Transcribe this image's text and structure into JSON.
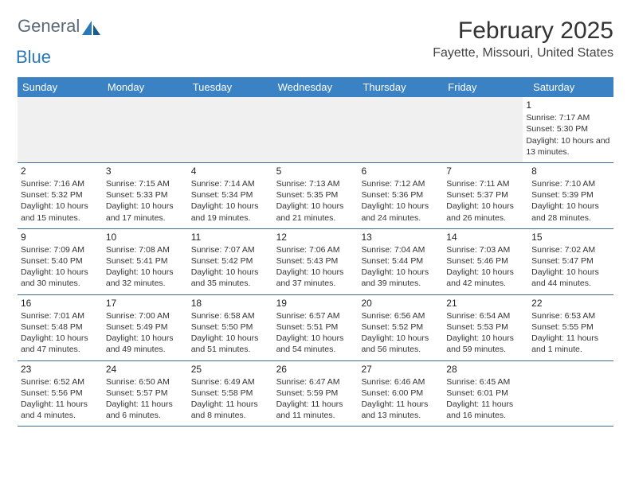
{
  "brand": {
    "name1": "General",
    "name2": "Blue"
  },
  "title": "February 2025",
  "location": "Fayette, Missouri, United States",
  "colors": {
    "header_bg": "#3a82c4",
    "header_text": "#ffffff",
    "rule": "#3a6a9a",
    "logo_gray": "#5a6a78",
    "logo_blue": "#2978b8",
    "text": "#333333",
    "blank_bg": "#f0f0f0"
  },
  "day_names": [
    "Sunday",
    "Monday",
    "Tuesday",
    "Wednesday",
    "Thursday",
    "Friday",
    "Saturday"
  ],
  "days": {
    "1": {
      "sunrise": "7:17 AM",
      "sunset": "5:30 PM",
      "daylight": "10 hours and 13 minutes."
    },
    "2": {
      "sunrise": "7:16 AM",
      "sunset": "5:32 PM",
      "daylight": "10 hours and 15 minutes."
    },
    "3": {
      "sunrise": "7:15 AM",
      "sunset": "5:33 PM",
      "daylight": "10 hours and 17 minutes."
    },
    "4": {
      "sunrise": "7:14 AM",
      "sunset": "5:34 PM",
      "daylight": "10 hours and 19 minutes."
    },
    "5": {
      "sunrise": "7:13 AM",
      "sunset": "5:35 PM",
      "daylight": "10 hours and 21 minutes."
    },
    "6": {
      "sunrise": "7:12 AM",
      "sunset": "5:36 PM",
      "daylight": "10 hours and 24 minutes."
    },
    "7": {
      "sunrise": "7:11 AM",
      "sunset": "5:37 PM",
      "daylight": "10 hours and 26 minutes."
    },
    "8": {
      "sunrise": "7:10 AM",
      "sunset": "5:39 PM",
      "daylight": "10 hours and 28 minutes."
    },
    "9": {
      "sunrise": "7:09 AM",
      "sunset": "5:40 PM",
      "daylight": "10 hours and 30 minutes."
    },
    "10": {
      "sunrise": "7:08 AM",
      "sunset": "5:41 PM",
      "daylight": "10 hours and 32 minutes."
    },
    "11": {
      "sunrise": "7:07 AM",
      "sunset": "5:42 PM",
      "daylight": "10 hours and 35 minutes."
    },
    "12": {
      "sunrise": "7:06 AM",
      "sunset": "5:43 PM",
      "daylight": "10 hours and 37 minutes."
    },
    "13": {
      "sunrise": "7:04 AM",
      "sunset": "5:44 PM",
      "daylight": "10 hours and 39 minutes."
    },
    "14": {
      "sunrise": "7:03 AM",
      "sunset": "5:46 PM",
      "daylight": "10 hours and 42 minutes."
    },
    "15": {
      "sunrise": "7:02 AM",
      "sunset": "5:47 PM",
      "daylight": "10 hours and 44 minutes."
    },
    "16": {
      "sunrise": "7:01 AM",
      "sunset": "5:48 PM",
      "daylight": "10 hours and 47 minutes."
    },
    "17": {
      "sunrise": "7:00 AM",
      "sunset": "5:49 PM",
      "daylight": "10 hours and 49 minutes."
    },
    "18": {
      "sunrise": "6:58 AM",
      "sunset": "5:50 PM",
      "daylight": "10 hours and 51 minutes."
    },
    "19": {
      "sunrise": "6:57 AM",
      "sunset": "5:51 PM",
      "daylight": "10 hours and 54 minutes."
    },
    "20": {
      "sunrise": "6:56 AM",
      "sunset": "5:52 PM",
      "daylight": "10 hours and 56 minutes."
    },
    "21": {
      "sunrise": "6:54 AM",
      "sunset": "5:53 PM",
      "daylight": "10 hours and 59 minutes."
    },
    "22": {
      "sunrise": "6:53 AM",
      "sunset": "5:55 PM",
      "daylight": "11 hours and 1 minute."
    },
    "23": {
      "sunrise": "6:52 AM",
      "sunset": "5:56 PM",
      "daylight": "11 hours and 4 minutes."
    },
    "24": {
      "sunrise": "6:50 AM",
      "sunset": "5:57 PM",
      "daylight": "11 hours and 6 minutes."
    },
    "25": {
      "sunrise": "6:49 AM",
      "sunset": "5:58 PM",
      "daylight": "11 hours and 8 minutes."
    },
    "26": {
      "sunrise": "6:47 AM",
      "sunset": "5:59 PM",
      "daylight": "11 hours and 11 minutes."
    },
    "27": {
      "sunrise": "6:46 AM",
      "sunset": "6:00 PM",
      "daylight": "11 hours and 13 minutes."
    },
    "28": {
      "sunrise": "6:45 AM",
      "sunset": "6:01 PM",
      "daylight": "11 hours and 16 minutes."
    }
  },
  "labels": {
    "sunrise": "Sunrise: ",
    "sunset": "Sunset: ",
    "daylight": "Daylight: "
  },
  "layout": {
    "weeks": [
      [
        0,
        0,
        0,
        0,
        0,
        0,
        1
      ],
      [
        2,
        3,
        4,
        5,
        6,
        7,
        8
      ],
      [
        9,
        10,
        11,
        12,
        13,
        14,
        15
      ],
      [
        16,
        17,
        18,
        19,
        20,
        21,
        22
      ],
      [
        23,
        24,
        25,
        26,
        27,
        28,
        0
      ]
    ],
    "first_row_blank_style": true
  }
}
